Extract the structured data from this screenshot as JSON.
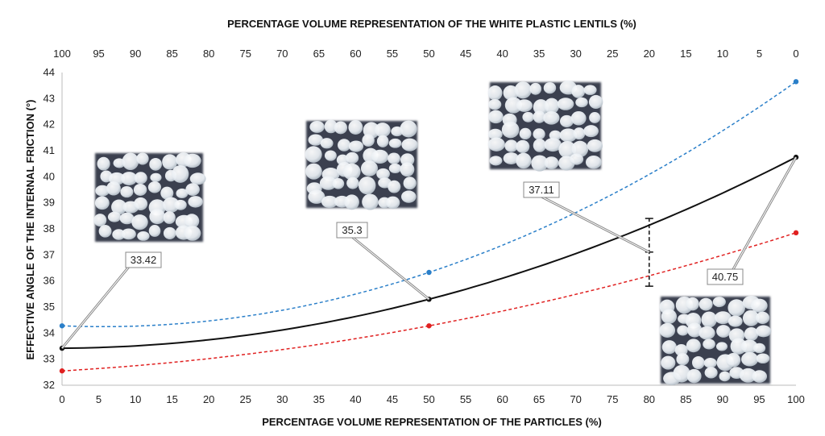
{
  "chart_data": {
    "type": "line",
    "title": "",
    "xlabel": "PERCENTAGE VOLUME REPRESENTATION OF THE PARTICLES (%)",
    "x2label": "PERCENTAGE VOLUME REPRESENTATION OF THE WHITE PLASTIC LENTILS (%)",
    "ylabel": "EFFECTIVE ANGLE OF THE INTERNAL FRICTION (°)",
    "xlim": [
      0,
      100
    ],
    "ylim": [
      32,
      44
    ],
    "x_ticks": [
      "0",
      "5",
      "10",
      "15",
      "20",
      "25",
      "30",
      "35",
      "40",
      "45",
      "50",
      "55",
      "60",
      "65",
      "70",
      "75",
      "80",
      "85",
      "90",
      "95",
      "100"
    ],
    "x2_ticks": [
      "100",
      "95",
      "90",
      "85",
      "80",
      "75",
      "70",
      "65",
      "60",
      "55",
      "50",
      "45",
      "40",
      "35",
      "30",
      "25",
      "20",
      "15",
      "10",
      "5",
      "0"
    ],
    "y_ticks": [
      "32",
      "33",
      "34",
      "35",
      "36",
      "37",
      "38",
      "39",
      "40",
      "41",
      "42",
      "43",
      "44"
    ],
    "grid": false,
    "colors": {
      "mean": "#111111",
      "upper": "#2a7fc9",
      "lower": "#e02020"
    },
    "series": [
      {
        "role": "upper",
        "style": "dashed",
        "color": "#2a7fc9",
        "x": [
          0,
          50,
          100
        ],
        "y": [
          34.28,
          36.33,
          43.65
        ]
      },
      {
        "role": "mean",
        "style": "solid",
        "color": "#111111",
        "x": [
          0,
          50,
          100
        ],
        "y": [
          33.42,
          35.3,
          40.75
        ]
      },
      {
        "role": "lower",
        "style": "dashed",
        "color": "#e02020",
        "x": [
          0,
          50,
          100
        ],
        "y": [
          32.55,
          34.28,
          37.85
        ]
      }
    ],
    "error_bar": {
      "x": 80,
      "center": 37.11,
      "low": 35.8,
      "high": 38.4
    },
    "annotations": [
      {
        "label": "33.42",
        "x": 0,
        "y": 33.42
      },
      {
        "label": "35.3",
        "x": 50,
        "y": 35.3
      },
      {
        "label": "37.11",
        "x": 80,
        "y": 37.11
      },
      {
        "label": "40.75",
        "x": 100,
        "y": 40.75
      }
    ]
  }
}
